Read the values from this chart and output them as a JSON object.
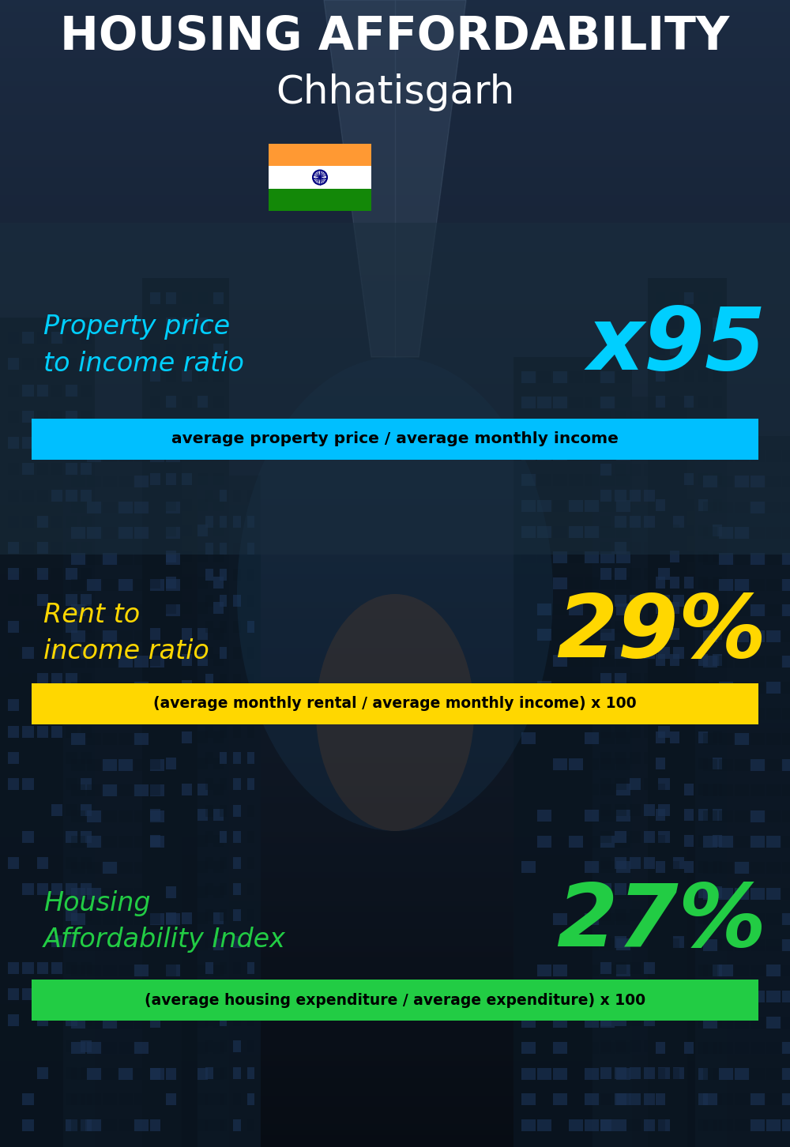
{
  "title_line1": "HOUSING AFFORDABILITY",
  "title_line2": "Chhatisgarh",
  "section1_label": "Property price\nto income ratio",
  "section1_value": "x95",
  "section1_label_color": "#00CFFF",
  "section1_value_color": "#00CFFF",
  "section1_bar_text": "average property price / average monthly income",
  "section1_bar_color": "#00BFFF",
  "section2_label": "Rent to\nincome ratio",
  "section2_value": "29%",
  "section2_label_color": "#FFD700",
  "section2_value_color": "#FFD700",
  "section2_bar_text": "(average monthly rental / average monthly income) x 100",
  "section2_bar_color": "#FFD700",
  "section3_label": "Housing\nAffordability Index",
  "section3_value": "27%",
  "section3_label_color": "#22CC44",
  "section3_value_color": "#22CC44",
  "section3_bar_text": "(average housing expenditure / average expenditure) x 100",
  "section3_bar_color": "#22CC44",
  "bg_dark": "#08121a",
  "bg_mid": "#0d1f2d",
  "title_color": "#ffffff",
  "bar_text_color": "#000000",
  "panel1_color": "#2a3f50",
  "panel1_alpha": 0.6
}
